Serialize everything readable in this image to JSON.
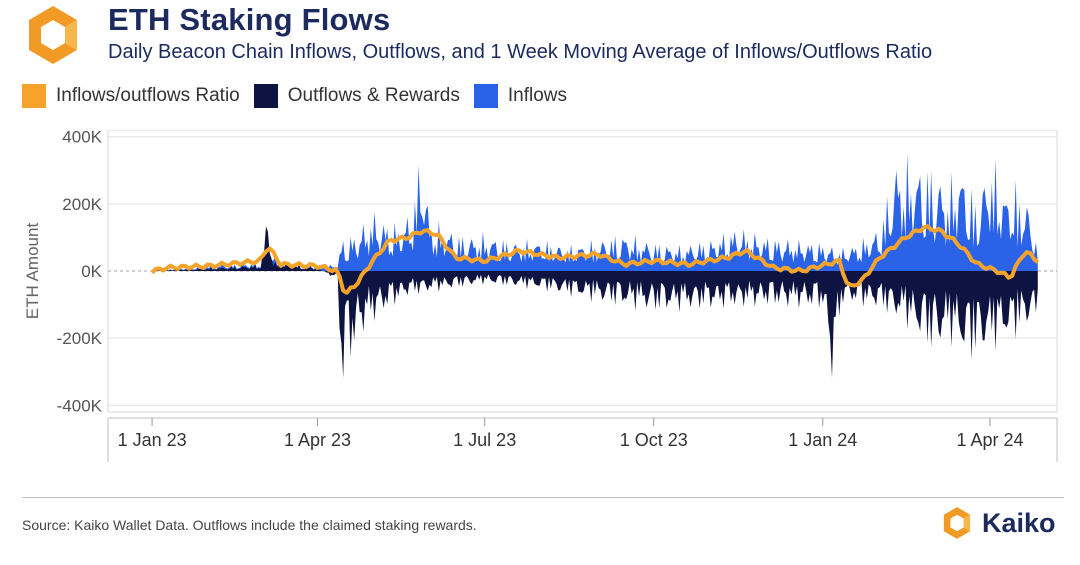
{
  "header": {
    "title": "ETH Staking Flows",
    "subtitle": "Daily Beacon Chain Inflows, Outflows, and 1 Week Moving Average of Inflows/Outflows Ratio"
  },
  "legend": [
    {
      "label": "Inflows/outflows Ratio",
      "color": "#f5a32b"
    },
    {
      "label": "Outflows & Rewards",
      "color": "#0d1442"
    },
    {
      "label": "Inflows",
      "color": "#2a63e8"
    }
  ],
  "footer": {
    "source": "Source: Kaiko Wallet Data. Outflows include the claimed staking rewards.",
    "brand": "Kaiko"
  },
  "colors": {
    "accent": "#f5a32b",
    "outflows": "#0d1442",
    "inflows": "#2a63e8",
    "title": "#1c2a5e"
  },
  "chart_data": {
    "type": "area",
    "title": "ETH Staking Flows",
    "ylabel": "ETH Amount",
    "xlabel": "",
    "ylim": [
      -420000,
      420000
    ],
    "y_ticks": [
      {
        "value": 400000,
        "label": "400K"
      },
      {
        "value": 200000,
        "label": "200K"
      },
      {
        "value": 0,
        "label": "0K"
      },
      {
        "value": -200000,
        "label": "-200K"
      },
      {
        "value": -400000,
        "label": "-400K"
      }
    ],
    "x_ticks": [
      {
        "date": "2023-01-01",
        "label": "1 Jan 23"
      },
      {
        "date": "2023-04-01",
        "label": "1 Apr 23"
      },
      {
        "date": "2023-07-01",
        "label": "1 Jul 23"
      },
      {
        "date": "2023-10-01",
        "label": "1 Oct 23"
      },
      {
        "date": "2024-01-01",
        "label": "1 Jan 24"
      },
      {
        "date": "2024-04-01",
        "label": "1 Apr 24"
      }
    ],
    "xlim": [
      "2022-12-08",
      "2024-05-08"
    ],
    "grid": true,
    "series": [
      {
        "name": "Inflows",
        "color": "#2a63e8",
        "points": [
          [
            "2023-01-01",
            0
          ],
          [
            "2023-01-20",
            15000
          ],
          [
            "2023-02-05",
            20000
          ],
          [
            "2023-02-20",
            25000
          ],
          [
            "2023-03-01",
            30000
          ],
          [
            "2023-03-05",
            95000
          ],
          [
            "2023-03-10",
            40000
          ],
          [
            "2023-03-20",
            20000
          ],
          [
            "2023-04-01",
            20000
          ],
          [
            "2023-04-12",
            20000
          ],
          [
            "2023-04-14",
            100000
          ],
          [
            "2023-04-22",
            120000
          ],
          [
            "2023-05-01",
            190000
          ],
          [
            "2023-05-08",
            160000
          ],
          [
            "2023-05-15",
            150000
          ],
          [
            "2023-05-22",
            190000
          ],
          [
            "2023-05-28",
            410000
          ],
          [
            "2023-06-01",
            170000
          ],
          [
            "2023-06-10",
            140000
          ],
          [
            "2023-06-20",
            110000
          ],
          [
            "2023-07-01",
            120000
          ],
          [
            "2023-07-15",
            95000
          ],
          [
            "2023-08-01",
            100000
          ],
          [
            "2023-08-15",
            80000
          ],
          [
            "2023-09-01",
            100000
          ],
          [
            "2023-09-15",
            120000
          ],
          [
            "2023-10-01",
            90000
          ],
          [
            "2023-10-15",
            80000
          ],
          [
            "2023-11-01",
            100000
          ],
          [
            "2023-11-15",
            140000
          ],
          [
            "2023-12-01",
            110000
          ],
          [
            "2023-12-15",
            100000
          ],
          [
            "2024-01-01",
            90000
          ],
          [
            "2024-01-10",
            70000
          ],
          [
            "2024-01-20",
            90000
          ],
          [
            "2024-02-01",
            140000
          ],
          [
            "2024-02-10",
            360000
          ],
          [
            "2024-02-20",
            350000
          ],
          [
            "2024-03-01",
            330000
          ],
          [
            "2024-03-10",
            280000
          ],
          [
            "2024-03-15",
            360000
          ],
          [
            "2024-03-25",
            220000
          ],
          [
            "2024-04-01",
            380000
          ],
          [
            "2024-04-10",
            260000
          ],
          [
            "2024-04-15",
            280000
          ],
          [
            "2024-04-22",
            220000
          ],
          [
            "2024-04-27",
            80000
          ]
        ]
      },
      {
        "name": "Outflows & Rewards",
        "color": "#0d1442",
        "points": [
          [
            "2023-01-01",
            0
          ],
          [
            "2023-02-01",
            10000
          ],
          [
            "2023-03-01",
            20000
          ],
          [
            "2023-03-05",
            200000
          ],
          [
            "2023-03-08",
            30000
          ],
          [
            "2023-04-01",
            10000
          ],
          [
            "2023-04-12",
            -30000
          ],
          [
            "2023-04-14",
            -390000
          ],
          [
            "2023-04-18",
            -300000
          ],
          [
            "2023-04-25",
            -200000
          ],
          [
            "2023-05-05",
            -140000
          ],
          [
            "2023-05-20",
            -80000
          ],
          [
            "2023-06-10",
            -60000
          ],
          [
            "2023-07-01",
            -40000
          ],
          [
            "2023-08-01",
            -60000
          ],
          [
            "2023-09-01",
            -100000
          ],
          [
            "2023-10-01",
            -130000
          ],
          [
            "2023-11-01",
            -120000
          ],
          [
            "2023-12-01",
            -110000
          ],
          [
            "2024-01-01",
            -120000
          ],
          [
            "2024-01-06",
            -350000
          ],
          [
            "2024-01-12",
            -100000
          ],
          [
            "2024-02-01",
            -120000
          ],
          [
            "2024-02-15",
            -170000
          ],
          [
            "2024-03-01",
            -260000
          ],
          [
            "2024-03-10",
            -220000
          ],
          [
            "2024-03-20",
            -290000
          ],
          [
            "2024-04-01",
            -250000
          ],
          [
            "2024-04-15",
            -210000
          ],
          [
            "2024-04-27",
            -150000
          ]
        ]
      },
      {
        "name": "Inflows/outflows Ratio",
        "color": "#f5a32b",
        "points": [
          [
            "2023-01-01",
            0
          ],
          [
            "2023-01-10",
            10000
          ],
          [
            "2023-02-01",
            15000
          ],
          [
            "2023-03-01",
            30000
          ],
          [
            "2023-03-05",
            75000
          ],
          [
            "2023-03-12",
            20000
          ],
          [
            "2023-04-01",
            15000
          ],
          [
            "2023-04-12",
            0
          ],
          [
            "2023-04-16",
            -70000
          ],
          [
            "2023-04-22",
            -40000
          ],
          [
            "2023-05-01",
            30000
          ],
          [
            "2023-05-10",
            90000
          ],
          [
            "2023-05-20",
            100000
          ],
          [
            "2023-05-28",
            120000
          ],
          [
            "2023-06-05",
            110000
          ],
          [
            "2023-06-15",
            40000
          ],
          [
            "2023-07-01",
            30000
          ],
          [
            "2023-07-20",
            60000
          ],
          [
            "2023-08-10",
            40000
          ],
          [
            "2023-09-01",
            50000
          ],
          [
            "2023-09-15",
            20000
          ],
          [
            "2023-10-01",
            30000
          ],
          [
            "2023-10-20",
            20000
          ],
          [
            "2023-11-10",
            40000
          ],
          [
            "2023-11-20",
            60000
          ],
          [
            "2023-12-05",
            10000
          ],
          [
            "2023-12-20",
            0
          ],
          [
            "2024-01-10",
            30000
          ],
          [
            "2024-01-15",
            -50000
          ],
          [
            "2024-01-22",
            -30000
          ],
          [
            "2024-02-01",
            40000
          ],
          [
            "2024-02-15",
            100000
          ],
          [
            "2024-02-25",
            130000
          ],
          [
            "2024-03-05",
            120000
          ],
          [
            "2024-03-15",
            80000
          ],
          [
            "2024-03-25",
            20000
          ],
          [
            "2024-04-05",
            0
          ],
          [
            "2024-04-12",
            -20000
          ],
          [
            "2024-04-20",
            60000
          ],
          [
            "2024-04-27",
            30000
          ]
        ]
      }
    ]
  }
}
